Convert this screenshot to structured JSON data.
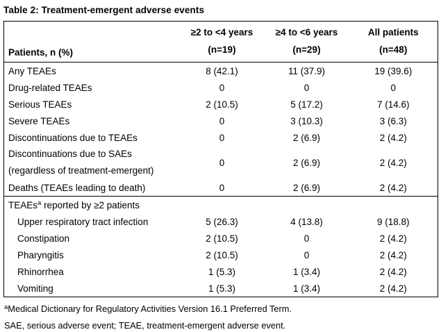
{
  "title": "Table 2: Treatment-emergent adverse events",
  "table": {
    "row_header_label": "Patients, n (%)",
    "columns": [
      {
        "label": "≥2 to <4 years",
        "n": "(n=19)"
      },
      {
        "label": "≥4 to <6 years",
        "n": "(n=29)"
      },
      {
        "label": "All patients",
        "n": "(n=48)"
      }
    ],
    "rows": [
      {
        "label": "Any TEAEs",
        "values": [
          "8 (42.1)",
          "11 (37.9)",
          "19 (39.6)"
        ]
      },
      {
        "label": "Drug-related TEAEs",
        "values": [
          "0",
          "0",
          "0"
        ]
      },
      {
        "label": "Serious TEAEs",
        "values": [
          "2 (10.5)",
          "5 (17.2)",
          "7 (14.6)"
        ]
      },
      {
        "label": "Severe TEAEs",
        "values": [
          "0",
          "3 (10.3)",
          "3 (6.3)"
        ]
      },
      {
        "label": "Discontinuations due to TEAEs",
        "values": [
          "0",
          "2 (6.9)",
          "2 (4.2)"
        ]
      },
      {
        "label": "Discontinuations due to SAEs",
        "label2": "(regardless of treatment-emergent)",
        "values": [
          "0",
          "2 (6.9)",
          "2 (4.2)"
        ]
      },
      {
        "label": "Deaths (TEAEs leading to death)",
        "values": [
          "0",
          "2 (6.9)",
          "2 (4.2)"
        ]
      },
      {
        "label": "Upper respiratory tract infection",
        "values": [
          "5 (26.3)",
          "4 (13.8)",
          "9 (18.8)"
        ]
      },
      {
        "label": "Constipation",
        "values": [
          "2 (10.5)",
          "0",
          "2 (4.2)"
        ]
      },
      {
        "label": "Pharyngitis",
        "values": [
          "2 (10.5)",
          "0",
          "2 (4.2)"
        ]
      },
      {
        "label": "Rhinorrhea",
        "values": [
          "1 (5.3)",
          "1 (3.4)",
          "2 (4.2)"
        ]
      },
      {
        "label": "Vomiting",
        "values": [
          "1 (5.3)",
          "1 (3.4)",
          "2 (4.2)"
        ]
      }
    ],
    "section": {
      "label_pre": "TEAEs",
      "superscript": "a",
      "label_post": " reported by ≥2 patients"
    }
  },
  "footnotes": {
    "fn1_superscript": "a",
    "fn1_text": "Medical Dictionary for Regulatory Activities Version 16.1 Preferred Term.",
    "fn2_text": "SAE, serious adverse event; TEAE, treatment-emergent adverse event."
  },
  "colors": {
    "text": "#000000",
    "border": "#000000",
    "background": "#ffffff"
  }
}
